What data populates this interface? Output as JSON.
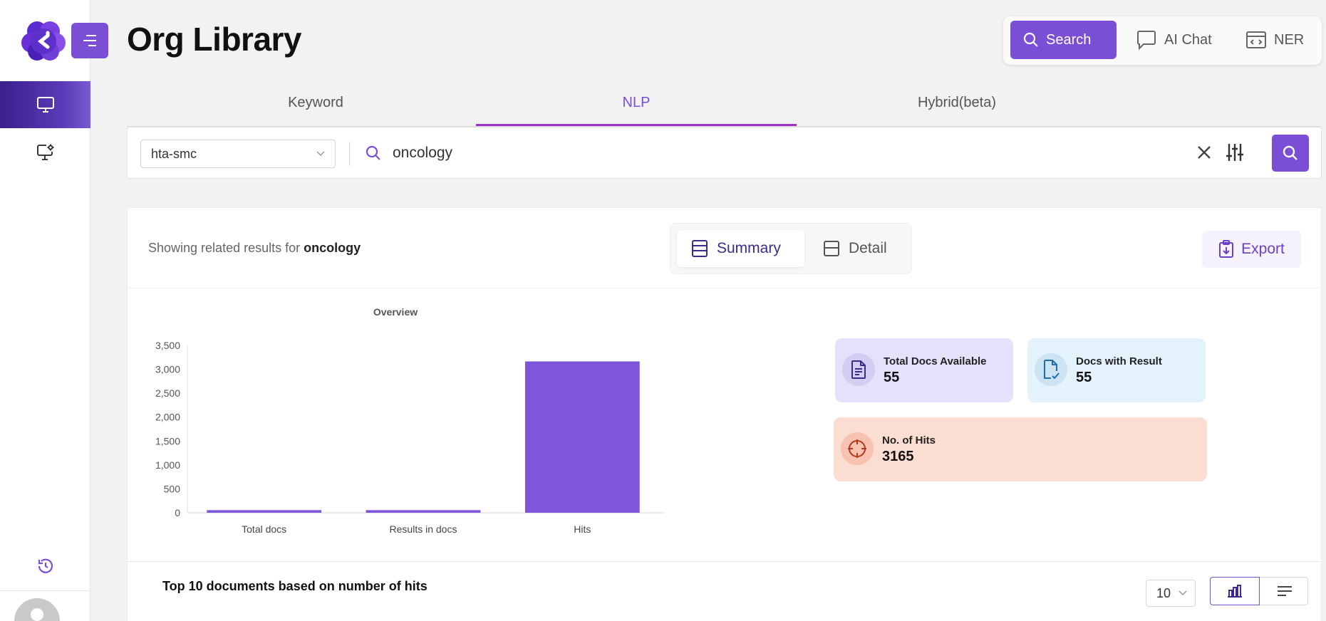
{
  "app": {
    "title": "Org Library"
  },
  "header": {
    "modes": [
      {
        "label": "Search",
        "icon": "search-icon",
        "active": true
      },
      {
        "label": "AI Chat",
        "icon": "chat-icon",
        "active": false
      },
      {
        "label": "NER",
        "icon": "code-window-icon",
        "active": false
      }
    ]
  },
  "tabs": [
    {
      "label": "Keyword",
      "active": false
    },
    {
      "label": "NLP",
      "active": true
    },
    {
      "label": "Hybrid(beta)",
      "active": false
    }
  ],
  "search": {
    "collection": "hta-smc",
    "query": "oncology"
  },
  "results": {
    "showing_prefix": "Showing related results for",
    "showing_term": "oncology",
    "views": [
      {
        "label": "Summary",
        "active": true
      },
      {
        "label": "Detail",
        "active": false
      }
    ],
    "export_label": "Export"
  },
  "stats": {
    "total_docs": {
      "label": "Total Docs Available",
      "value": "55"
    },
    "docs_with_result": {
      "label": "Docs with Result",
      "value": "55"
    },
    "hits": {
      "label": "No. of Hits",
      "value": "3165"
    }
  },
  "chart_data": {
    "type": "bar",
    "title": "Overview",
    "categories": [
      "Total docs",
      "Results in docs",
      "Hits"
    ],
    "values": [
      55,
      55,
      3165
    ],
    "yticks": [
      "0",
      "500",
      "1,000",
      "1,500",
      "2,000",
      "2,500",
      "3,000",
      "3,500"
    ],
    "ylim": [
      0,
      3500
    ],
    "grid": false,
    "color": "#7f56d9"
  },
  "top_docs": {
    "title": "Top 10 documents based on number of hits",
    "page_size": "10"
  },
  "colors": {
    "accent": "#7a4fd6",
    "tab_underline": "#9b2fc6",
    "sidebar_active": "#3b1f8c"
  }
}
